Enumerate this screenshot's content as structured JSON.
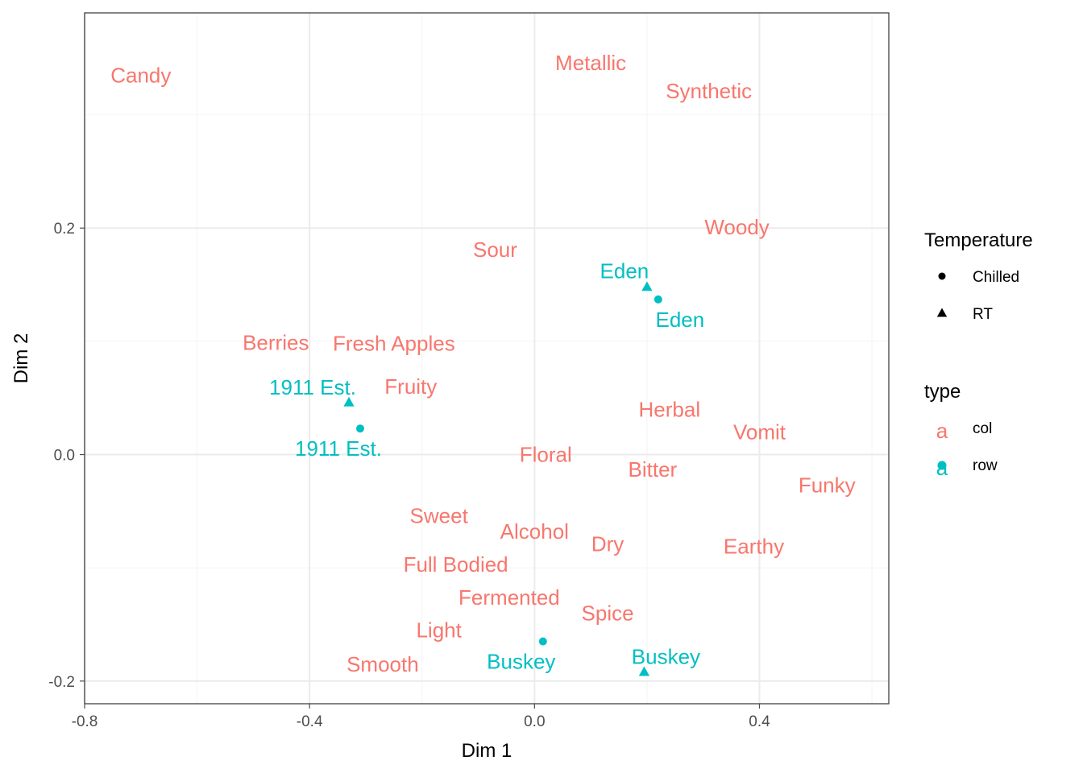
{
  "colors": {
    "col": "#F8766D",
    "row": "#00BFC4",
    "panel_border": "#333333",
    "grid_major": "#EBEBEB",
    "grid_minor": "#F4F4F4",
    "tick": "#4d4d4d"
  },
  "chart_data": {
    "type": "scatter",
    "title": "",
    "xlabel": "Dim 1",
    "ylabel": "Dim 2",
    "xlim": [
      -0.8,
      0.63
    ],
    "ylim": [
      -0.22,
      0.39
    ],
    "x_ticks": [
      -0.8,
      -0.4,
      0.0,
      0.4
    ],
    "x_tick_labels": [
      "-0.8",
      "-0.4",
      "0.0",
      "0.4"
    ],
    "y_ticks": [
      -0.2,
      0.0,
      0.2
    ],
    "y_tick_labels": [
      "-0.2",
      "0.0",
      "0.2"
    ],
    "grid": true,
    "legend_position": "right",
    "col_labels": [
      {
        "label": "Candy",
        "x": -0.7,
        "y": 0.335
      },
      {
        "label": "Metallic",
        "x": 0.1,
        "y": 0.346
      },
      {
        "label": "Synthetic",
        "x": 0.31,
        "y": 0.321
      },
      {
        "label": "Woody",
        "x": 0.36,
        "y": 0.201
      },
      {
        "label": "Sour",
        "x": -0.07,
        "y": 0.181
      },
      {
        "label": "Berries",
        "x": -0.46,
        "y": 0.099
      },
      {
        "label": "Fresh Apples",
        "x": -0.25,
        "y": 0.098
      },
      {
        "label": "Fruity",
        "x": -0.22,
        "y": 0.06
      },
      {
        "label": "Herbal",
        "x": 0.24,
        "y": 0.04
      },
      {
        "label": "Vomit",
        "x": 0.4,
        "y": 0.02
      },
      {
        "label": "Floral",
        "x": 0.02,
        "y": 0.0
      },
      {
        "label": "Bitter",
        "x": 0.21,
        "y": -0.013
      },
      {
        "label": "Funky",
        "x": 0.52,
        "y": -0.027
      },
      {
        "label": "Sweet",
        "x": -0.17,
        "y": -0.054
      },
      {
        "label": "Alcohol",
        "x": 0.0,
        "y": -0.068
      },
      {
        "label": "Dry",
        "x": 0.13,
        "y": -0.079
      },
      {
        "label": "Earthy",
        "x": 0.39,
        "y": -0.081
      },
      {
        "label": "Full Bodied",
        "x": -0.14,
        "y": -0.097
      },
      {
        "label": "Fermented",
        "x": -0.045,
        "y": -0.126
      },
      {
        "label": "Spice",
        "x": 0.13,
        "y": -0.14
      },
      {
        "label": "Light",
        "x": -0.17,
        "y": -0.155
      },
      {
        "label": "Smooth",
        "x": -0.27,
        "y": -0.185
      }
    ],
    "row_points": [
      {
        "label": "Eden",
        "temperature": "RT",
        "x": 0.2,
        "y": 0.148
      },
      {
        "label": "Eden",
        "temperature": "Chilled",
        "x": 0.22,
        "y": 0.137
      },
      {
        "label": "1911 Est.",
        "temperature": "RT",
        "x": -0.33,
        "y": 0.046
      },
      {
        "label": "1911 Est.",
        "temperature": "Chilled",
        "x": -0.31,
        "y": 0.023
      },
      {
        "label": "Buskey",
        "temperature": "Chilled",
        "x": 0.015,
        "y": -0.165
      },
      {
        "label": "Buskey",
        "temperature": "RT",
        "x": 0.195,
        "y": -0.192
      }
    ],
    "legends": [
      {
        "title": "Temperature",
        "entries": [
          {
            "label": "Chilled",
            "shape": "circle"
          },
          {
            "label": "RT",
            "shape": "triangle"
          }
        ]
      },
      {
        "title": "type",
        "entries": [
          {
            "label": "col",
            "glyph": "a",
            "color_key": "col"
          },
          {
            "label": "row",
            "glyph": "a",
            "color_key": "row",
            "with_point": true
          }
        ]
      }
    ]
  }
}
